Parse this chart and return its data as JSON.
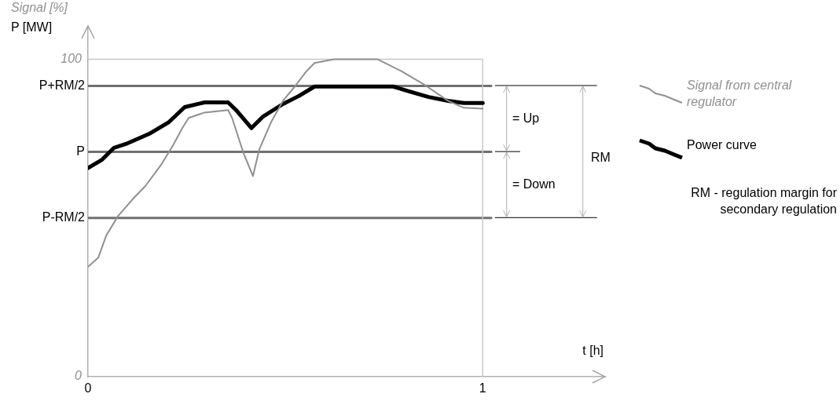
{
  "chart_data": {
    "type": "line",
    "xlabel": "t [h]",
    "ylabel": "Signal [%]",
    "xlim": [
      0,
      1.31
    ],
    "xticks": [
      0,
      1
    ],
    "ylim": [
      0,
      110
    ],
    "yticks": [
      0,
      100
    ],
    "legend": "right",
    "series": [
      {
        "name": "Signal from central regulator",
        "color": "#909090",
        "x": [
          0,
          0.026,
          0.046,
          0.076,
          0.116,
          0.145,
          0.185,
          0.215,
          0.239,
          0.255,
          0.295,
          0.355,
          0.365,
          0.394,
          0.418,
          0.434,
          0.464,
          0.494,
          0.524,
          0.554,
          0.574,
          0.624,
          0.733,
          0.793,
          0.853,
          0.912,
          0.952,
          1.0
        ],
        "values": [
          34.6,
          37.5,
          44.4,
          50.6,
          56.3,
          60.0,
          66.7,
          72.8,
          78.3,
          81.5,
          83.2,
          84.0,
          81.5,
          70.4,
          63.2,
          71.6,
          80.2,
          86.9,
          91.4,
          96.3,
          98.8,
          100,
          100,
          96.3,
          91.9,
          86.9,
          84.7,
          84.4
        ]
      },
      {
        "name": "Power curve",
        "color": "#000000",
        "x": [
          0,
          0.036,
          0.066,
          0.096,
          0.155,
          0.205,
          0.245,
          0.295,
          0.355,
          0.375,
          0.414,
          0.444,
          0.494,
          0.534,
          0.574,
          0.773,
          0.813,
          0.863,
          0.912,
          0.952,
          1.0
        ],
        "values": [
          65.7,
          68.4,
          72.1,
          73.3,
          76.5,
          80.2,
          84.9,
          86.4,
          86.4,
          84.0,
          78.3,
          82.0,
          85.9,
          88.4,
          91.4,
          91.4,
          89.9,
          88.1,
          86.9,
          86.2,
          86.2
        ]
      }
    ],
    "ref_lines": [
      {
        "axis": "y",
        "value": 50,
        "label": "P-RM/2",
        "color": "#707070"
      },
      {
        "axis": "y",
        "value": 70.8,
        "label": "P",
        "color": "#707070"
      },
      {
        "axis": "y",
        "value": 91.6,
        "label": "P+RM/2",
        "color": "#707070"
      },
      {
        "axis": "y",
        "value": 100,
        "color": "#c8c8c8"
      },
      {
        "axis": "x",
        "value": 1,
        "color": "#c8c8c8"
      }
    ],
    "annotations": [
      "= Up",
      "= Down",
      "RM",
      "RM - regulation margin for secondary regulation",
      "P [MW]"
    ]
  }
}
